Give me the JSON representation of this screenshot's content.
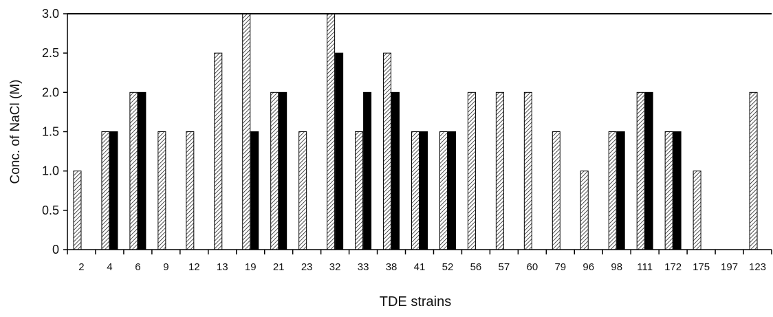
{
  "chart_data": {
    "type": "bar",
    "title": "",
    "xlabel": "TDE strains",
    "ylabel": "Conc. of NaCl (M)",
    "ylim": [
      0,
      3.0
    ],
    "yticks": [
      "0",
      "0.5",
      "1.0",
      "1.5",
      "2.0",
      "2.5",
      "3.0"
    ],
    "ytick_values": [
      0,
      0.5,
      1.0,
      1.5,
      2.0,
      2.5,
      3.0
    ],
    "grid": false,
    "legend": "none",
    "categories": [
      "2",
      "4",
      "6",
      "9",
      "12",
      "13",
      "19",
      "21",
      "23",
      "32",
      "33",
      "38",
      "41",
      "52",
      "56",
      "57",
      "60",
      "79",
      "96",
      "98",
      "111",
      "172",
      "175",
      "197",
      "123"
    ],
    "series": [
      {
        "pattern": "hatched",
        "color": "#ffffff",
        "values": [
          1.0,
          1.5,
          2.0,
          1.5,
          1.5,
          2.5,
          3.0,
          2.0,
          1.5,
          3.0,
          1.5,
          2.5,
          1.5,
          1.5,
          2.0,
          2.0,
          2.0,
          1.5,
          1.0,
          1.5,
          2.0,
          1.5,
          1.0,
          0,
          2.0
        ]
      },
      {
        "pattern": "solid",
        "color": "#000000",
        "values": [
          0,
          1.5,
          2.0,
          0,
          0,
          0,
          1.5,
          2.0,
          0,
          2.5,
          2.0,
          2.0,
          1.5,
          1.5,
          0,
          0,
          0,
          0,
          0,
          1.5,
          2.0,
          1.5,
          0,
          0,
          0
        ]
      }
    ]
  }
}
